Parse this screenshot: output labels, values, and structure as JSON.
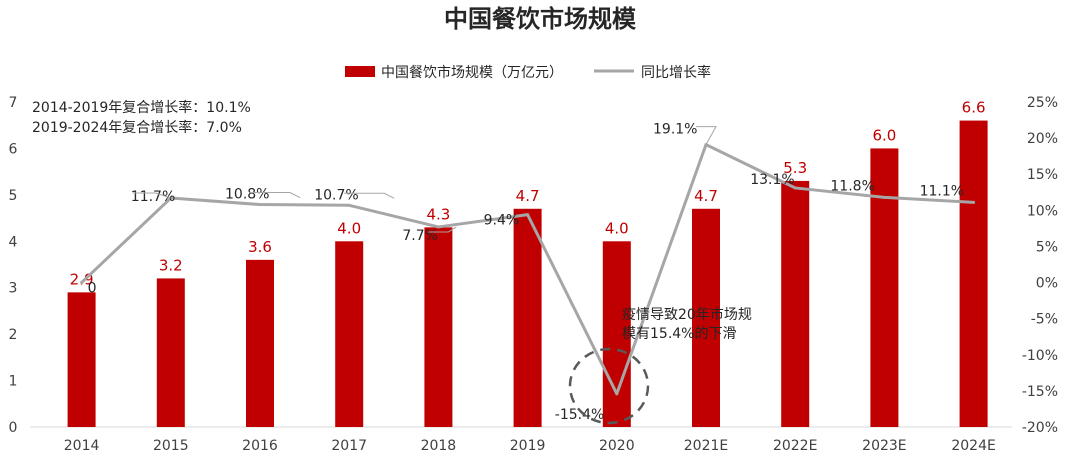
{
  "chart_data": {
    "type": "bar+line",
    "title": "中国餐饮市场规模",
    "legend": {
      "position": "top-center",
      "items": [
        {
          "name": "中国餐饮市场规模（万亿元）",
          "mark": "bar",
          "color": "#C00000"
        },
        {
          "name": "同比增长率",
          "mark": "line",
          "color": "#A6A6A6"
        }
      ]
    },
    "categories": [
      "2014",
      "2015",
      "2016",
      "2017",
      "2018",
      "2019",
      "2020",
      "2021E",
      "2022E",
      "2023E",
      "2024E"
    ],
    "series": [
      {
        "name": "中国餐饮市场规模（万亿元）",
        "axis": "left",
        "type": "bar",
        "values": [
          2.9,
          3.2,
          3.6,
          4.0,
          4.3,
          4.7,
          4.0,
          4.7,
          5.3,
          6.0,
          6.6
        ],
        "labels": [
          "2.9",
          "3.2",
          "3.6",
          "4.0",
          "4.3",
          "4.7",
          "4.0",
          "4.7",
          "5.3",
          "6.0",
          "6.6"
        ]
      },
      {
        "name": "同比增长率",
        "axis": "right",
        "type": "line",
        "values": [
          0,
          11.7,
          10.8,
          10.7,
          7.7,
          9.4,
          -15.4,
          19.1,
          13.1,
          11.8,
          11.1
        ],
        "labels": [
          "0",
          "11.7%",
          "10.8%",
          "10.7%",
          "7.7%",
          "9.4%",
          "-15.4%",
          "19.1%",
          "13.1%",
          "11.8%",
          "11.1%"
        ]
      }
    ],
    "left_axis": {
      "ylim": [
        0,
        7
      ],
      "ticks": [
        "0",
        "1",
        "2",
        "3",
        "4",
        "5",
        "6",
        "7"
      ]
    },
    "right_axis": {
      "ylim": [
        -20,
        25
      ],
      "ticks": [
        "-20%",
        "-15%",
        "-10%",
        "-5%",
        "0%",
        "5%",
        "10%",
        "15%",
        "20%",
        "25%"
      ]
    },
    "grid": false,
    "annotations": {
      "cagr_lines": [
        "2014-2019年复合增长率：10.1%",
        "2019-2024年复合增长率：7.0%"
      ],
      "covid_note_lines": [
        "疫情导致20年市场规",
        "模有15.4%的下滑"
      ]
    },
    "colors": {
      "bar": "#C00000",
      "line": "#A6A6A6",
      "bar_label": "#C00000",
      "text": "#262626",
      "axis_text": "#404040"
    }
  }
}
